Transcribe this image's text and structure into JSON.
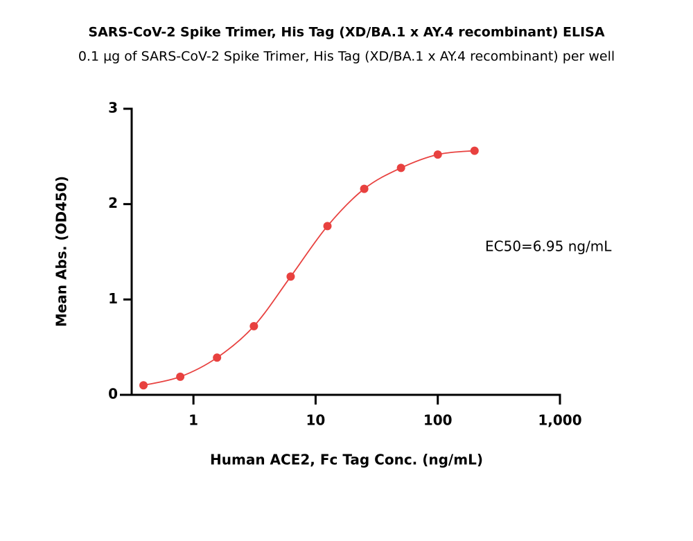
{
  "chart_data": {
    "type": "scatter",
    "title": "SARS-CoV-2 Spike Trimer, His Tag (XD/BA.1 x AY.4 recombinant) ELISA",
    "subtitle": "0.1 µg of SARS-CoV-2 Spike Trimer, His Tag (XD/BA.1 x AY.4 recombinant) per well",
    "x_label": "Human ACE2, Fc Tag Conc. (ng/mL)",
    "y_label": "Mean Abs. (OD450)",
    "annotation": "EC50=6.95 ng/mL",
    "x_log": true,
    "x": [
      0.39,
      0.78,
      1.56,
      3.125,
      6.25,
      12.5,
      25,
      50,
      100,
      200
    ],
    "series": [
      {
        "color": "#e8413f",
        "values": [
          0.1,
          0.19,
          0.39,
          0.72,
          1.24,
          1.77,
          2.16,
          2.38,
          2.52,
          2.56
        ]
      }
    ],
    "xlim": [
      0.25,
      1000
    ],
    "xticks": [
      1,
      10,
      100,
      {
        "value": 1000,
        "label": "1,000"
      }
    ],
    "ylim": [
      0,
      3
    ],
    "yticks": [
      0,
      1,
      2,
      3
    ]
  }
}
